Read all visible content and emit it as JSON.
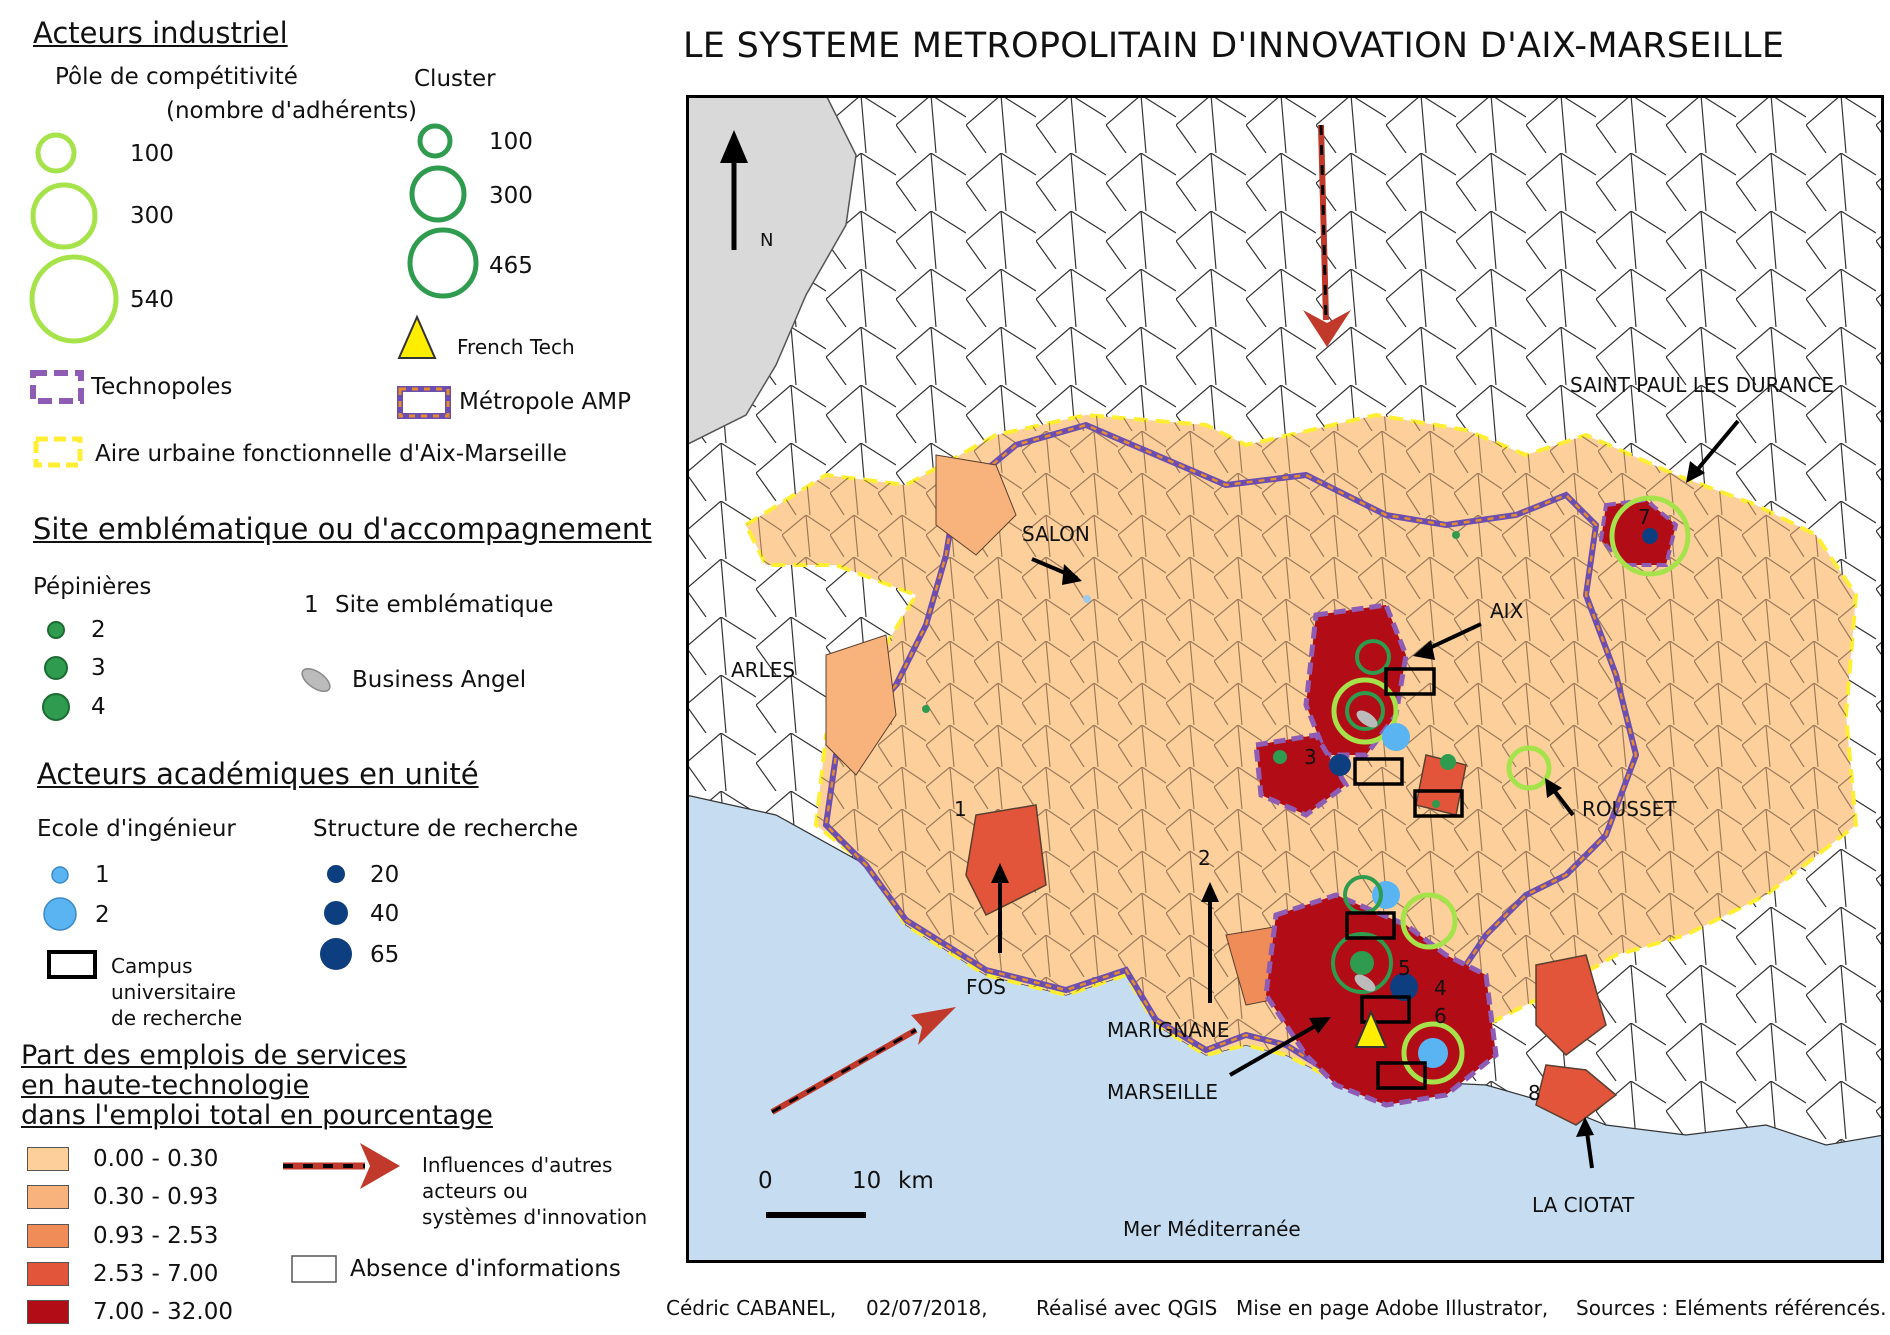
{
  "title": "LE SYSTEME METROPOLITAIN D'INNOVATION D'AIX-MARSEILLE",
  "legend": {
    "industrial": {
      "heading": "Acteurs industriel",
      "pole_label": "Pôle de compétitivité",
      "pole_sublabel": "(nombre d'adhérents)",
      "pole_values": [
        "100",
        "300",
        "540"
      ],
      "cluster_label": "Cluster",
      "cluster_values": [
        "100",
        "300",
        "465"
      ],
      "french_tech": "French Tech",
      "technopoles": "Technopoles",
      "metropole": "Métropole AMP",
      "aire_urbaine": "Aire urbaine fonctionnelle  d'Aix-Marseille",
      "colors": {
        "pole": "#a6e34a",
        "cluster": "#2e9b4e",
        "french_tech": "#ffee00",
        "technopole": "#8e5bb5",
        "metro_a": "#6c4db0",
        "metro_b": "#e58c2e",
        "aire": "#ffee33"
      }
    },
    "sites": {
      "heading": "Site emblématique ou d'accompagnement",
      "pepinieres_label": "Pépinières",
      "pepinieres_values": [
        "2",
        "3",
        "4"
      ],
      "site_embl_number": "1",
      "site_embl_label": "Site emblématique",
      "business_angel": "Business Angel"
    },
    "academic": {
      "heading": "Acteurs académiques en unité",
      "ecole_label": "Ecole d'ingénieur",
      "ecole_values": [
        "1",
        "2"
      ],
      "structure_label": "Structure de recherche",
      "structure_values": [
        "20",
        "40",
        "65"
      ],
      "campus_label": [
        "Campus",
        "universitaire",
        "de recherche"
      ]
    },
    "employment": {
      "heading": [
        "Part des emplois de services",
        "en haute-technologie",
        "dans l'emploi total en pourcentage"
      ],
      "classes": [
        {
          "label": "0.00 - 0.30",
          "color": "#fdd09b"
        },
        {
          "label": "0.30 - 0.93",
          "color": "#f8b27c"
        },
        {
          "label": "0.93 - 2.53",
          "color": "#f08c57"
        },
        {
          "label": "2.53 - 7.00",
          "color": "#e2553a"
        },
        {
          "label": "7.00 - 32.00",
          "color": "#b20d16"
        }
      ],
      "absence": "Absence d'informations",
      "influences": [
        "Influences d'autres",
        "acteurs ou",
        "systèmes d'innovation"
      ]
    }
  },
  "map": {
    "north": "N",
    "scale_zero": "0",
    "scale_ten": "10",
    "scale_unit": "km",
    "sea_label": "Mer Méditerranée",
    "places": {
      "arles": "ARLES",
      "salon": "SALON",
      "aix": "AIX",
      "saint_paul": "SAINT PAUL LES DURANCE",
      "rousset": "ROUSSET",
      "fos": "FOS",
      "marignane": "MARIGNANE",
      "marseille": "MARSEILLE",
      "la_ciotat": "LA CIOTAT"
    },
    "site_numbers": [
      "1",
      "2",
      "3",
      "4",
      "5",
      "6",
      "7",
      "8"
    ]
  },
  "footer": {
    "author": "Cédric CABANEL,",
    "date": "02/07/2018,",
    "tool": "Réalisé avec QGIS",
    "layout": "Mise en page Adobe Illustrator,",
    "sources": "Sources : Eléments référencés."
  }
}
